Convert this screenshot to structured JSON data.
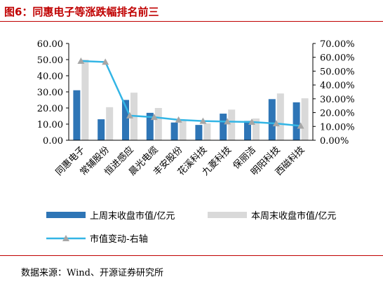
{
  "page": {
    "title": "图6：同惠电子等涨跌幅排名前三",
    "source": "数据来源：Wind、开源证券研究所"
  },
  "colors": {
    "accent": "#c00000",
    "bar_current": "#2e75b6",
    "bar_last": "#d9d9d9",
    "line": "#33b5e5",
    "marker": "#a6a6a6"
  },
  "chart_data": {
    "type": "bar",
    "categories": [
      "同惠电子",
      "常辅股份",
      "恒进感应",
      "晨光电缆",
      "丰安股份",
      "花溪科技",
      "九菱科技",
      "保丽洁",
      "明阳科技",
      "西磁科技"
    ],
    "series": [
      {
        "name": "上周末收盘市值/亿元",
        "type": "bar",
        "axis": "left",
        "values": [
          31.0,
          13.0,
          25.0,
          17.0,
          11.0,
          9.5,
          16.5,
          12.0,
          25.5,
          23.5
        ]
      },
      {
        "name": "本周末收盘市值/亿元",
        "type": "bar",
        "axis": "left",
        "values": [
          50.0,
          20.5,
          29.5,
          20.0,
          12.5,
          10.5,
          19.0,
          13.5,
          29.0,
          26.0
        ]
      },
      {
        "name": "市值变动-右轴",
        "type": "line",
        "axis": "right",
        "values": [
          57.3,
          56.6,
          17.8,
          16.7,
          14.8,
          13.9,
          13.5,
          13.2,
          12.1,
          10.4
        ]
      }
    ],
    "y_left": {
      "min": 0,
      "max": 60,
      "step": 10,
      "tick_labels": [
        "0.00",
        "10.00",
        "20.00",
        "30.00",
        "40.00",
        "50.00",
        "60.00"
      ]
    },
    "y_right": {
      "min": 0,
      "max": 70,
      "step": 10,
      "tick_labels": [
        "0.00%",
        "10.00%",
        "20.00%",
        "30.00%",
        "40.00%",
        "50.00%",
        "60.00%",
        "70.00%"
      ]
    },
    "grid": false,
    "legend_position": "bottom"
  }
}
